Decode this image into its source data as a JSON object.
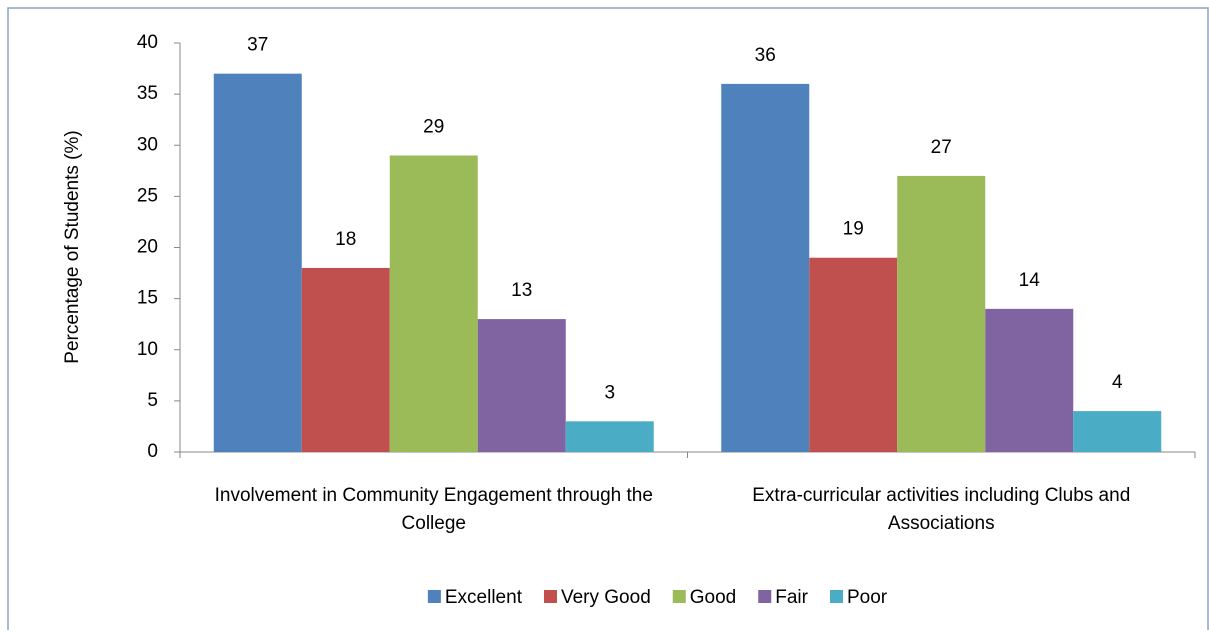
{
  "chart_data": {
    "type": "bar",
    "y_label": "Percentage  of  Students  (%)",
    "categories": [
      "Involvement in Community Engagement through the College",
      "Extra-curricular activities including Clubs and Associations"
    ],
    "series": [
      {
        "name": "Excellent",
        "color": "#4f81bd",
        "values": [
          37,
          36
        ]
      },
      {
        "name": "Very Good",
        "color": "#c0504d",
        "values": [
          18,
          19
        ]
      },
      {
        "name": "Good",
        "color": "#9bbb59",
        "values": [
          29,
          27
        ]
      },
      {
        "name": "Fair",
        "color": "#8064a2",
        "values": [
          13,
          14
        ]
      },
      {
        "name": "Poor",
        "color": "#4bacc6",
        "values": [
          3,
          4
        ]
      }
    ],
    "ylim": [
      0,
      40
    ],
    "yticks": [
      0,
      5,
      10,
      15,
      20,
      25,
      30,
      35,
      40
    ],
    "grid": false,
    "legend": "bottom"
  }
}
